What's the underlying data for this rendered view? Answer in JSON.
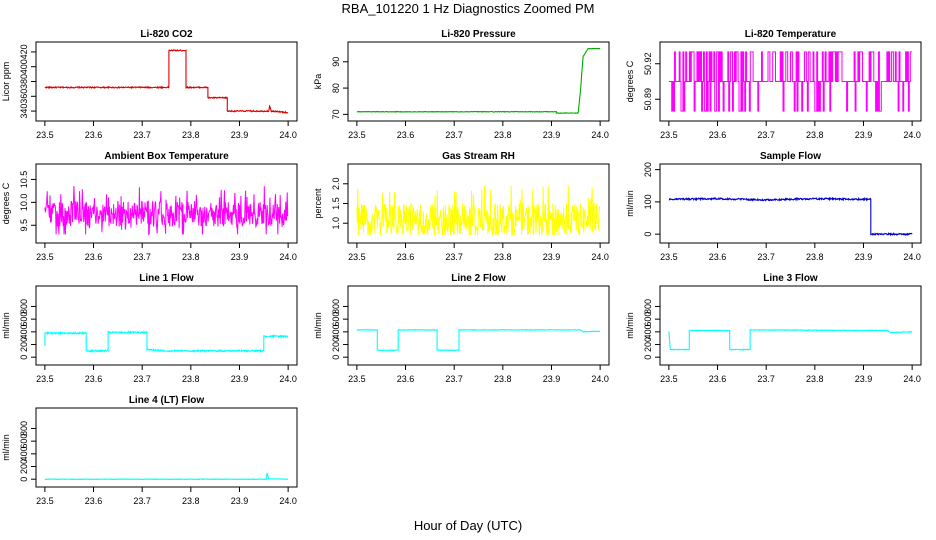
{
  "figure": {
    "title": "RBA_101220  1 Hz Diagnostics Zoomed PM",
    "xlabel": "Hour of Day (UTC)"
  },
  "chart_data": [
    {
      "type": "line",
      "title": "Li-820 CO2",
      "ylabel": "Licor ppm",
      "xlim": [
        23.49,
        24.01
      ],
      "ylim": [
        332,
        428
      ],
      "xticks": [
        "23.5",
        "23.6",
        "23.7",
        "23.8",
        "23.9",
        "24.0"
      ],
      "xtick_values": [
        23.5,
        23.6,
        23.7,
        23.8,
        23.9,
        24.0
      ],
      "yticks": [
        "340",
        "360",
        "380",
        "400",
        "420"
      ],
      "ytick_values": [
        340,
        360,
        380,
        400,
        420
      ],
      "color": "#dd0000",
      "noise": 0.8,
      "series": [
        {
          "x": [
            23.5,
            23.755,
            23.755,
            23.79,
            23.79,
            23.835,
            23.835,
            23.875,
            23.875,
            23.96,
            23.962,
            23.965,
            24.0
          ],
          "y": [
            372,
            372,
            422,
            422,
            372,
            372,
            358,
            358,
            340,
            340,
            347,
            340,
            338
          ]
        }
      ]
    },
    {
      "type": "line",
      "title": "Li-820 Pressure",
      "ylabel": "kPa",
      "xlim": [
        23.49,
        24.01
      ],
      "ylim": [
        69,
        96
      ],
      "xticks": [
        "23.5",
        "23.6",
        "23.7",
        "23.8",
        "23.9",
        "24.0"
      ],
      "xtick_values": [
        23.5,
        23.6,
        23.7,
        23.8,
        23.9,
        24.0
      ],
      "yticks": [
        "70",
        "80",
        "90"
      ],
      "ytick_values": [
        70,
        80,
        90
      ],
      "color": "#00aa00",
      "noise": 0.1,
      "series": [
        {
          "x": [
            23.5,
            23.91,
            23.91,
            23.955,
            23.96,
            23.965,
            23.975,
            24.0
          ],
          "y": [
            71,
            71,
            70.5,
            70.5,
            80,
            92,
            95,
            95
          ]
        }
      ]
    },
    {
      "type": "line",
      "title": "Li-820 Temperature",
      "ylabel": "degrees C",
      "xlim": [
        23.49,
        24.01
      ],
      "ylim": [
        50.875,
        50.935
      ],
      "xticks": [
        "23.5",
        "23.6",
        "23.7",
        "23.8",
        "23.9",
        "24.0"
      ],
      "xtick_values": [
        23.5,
        23.6,
        23.7,
        23.8,
        23.9,
        24.0
      ],
      "yticks": [
        "50.89",
        "50.92"
      ],
      "ytick_values": [
        50.89,
        50.92
      ],
      "color": "#ff00ff",
      "pattern": {
        "kind": "switch",
        "levels": [
          50.88,
          50.905,
          50.93
        ],
        "weights": [
          0.15,
          0.55,
          0.3
        ]
      },
      "series": []
    },
    {
      "type": "line",
      "title": "Ambient Box Temperature",
      "ylabel": "degrees C",
      "xlim": [
        23.49,
        24.01
      ],
      "ylim": [
        9.2,
        10.75
      ],
      "xticks": [
        "23.5",
        "23.6",
        "23.7",
        "23.8",
        "23.9",
        "24.0"
      ],
      "xtick_values": [
        23.5,
        23.6,
        23.7,
        23.8,
        23.9,
        24.0
      ],
      "yticks": [
        "9.5",
        "10.0",
        "10.5"
      ],
      "ytick_values": [
        9.5,
        10.0,
        10.5
      ],
      "color": "#ff00ff",
      "pattern": {
        "kind": "noise",
        "mean": 9.75,
        "spread": 0.28,
        "min": 9.3,
        "max": 10.65
      },
      "series": []
    },
    {
      "type": "line",
      "title": "Gas Stream RH",
      "ylabel": "percent",
      "xlim": [
        23.49,
        24.01
      ],
      "ylim": [
        0.6,
        2.4
      ],
      "xticks": [
        "23.5",
        "23.6",
        "23.7",
        "23.8",
        "23.9",
        "24.0"
      ],
      "xtick_values": [
        23.5,
        23.6,
        23.7,
        23.8,
        23.9,
        24.0
      ],
      "yticks": [
        "1.0",
        "1.5",
        "2.0"
      ],
      "ytick_values": [
        1.0,
        1.5,
        2.0
      ],
      "color": "#ffff00",
      "pattern": {
        "kind": "noise",
        "mean": 1.1,
        "spread": 0.4,
        "min": 0.7,
        "max": 2.3
      },
      "series": []
    },
    {
      "type": "line",
      "title": "Sample Flow",
      "ylabel": "ml/min",
      "xlim": [
        23.49,
        24.01
      ],
      "ylim": [
        -15,
        205
      ],
      "xticks": [
        "23.5",
        "23.6",
        "23.7",
        "23.8",
        "23.9",
        "24.0"
      ],
      "xtick_values": [
        23.5,
        23.6,
        23.7,
        23.8,
        23.9,
        24.0
      ],
      "yticks": [
        "0",
        "100",
        "200"
      ],
      "ytick_values": [
        0,
        100,
        200
      ],
      "color": "#0000cc",
      "noise": 2.5,
      "series": [
        {
          "x": [
            23.5,
            23.6,
            23.7,
            23.8,
            23.915,
            23.915,
            24.0
          ],
          "y": [
            108,
            110,
            106,
            110,
            108,
            0,
            0
          ]
        }
      ]
    },
    {
      "type": "line",
      "title": "Line 1 Flow",
      "ylabel": "ml/min",
      "xlim": [
        23.49,
        24.01
      ],
      "ylim": [
        -60,
        1060
      ],
      "xticks": [
        "23.5",
        "23.6",
        "23.7",
        "23.8",
        "23.9",
        "24.0"
      ],
      "xtick_values": [
        23.5,
        23.6,
        23.7,
        23.8,
        23.9,
        24.0
      ],
      "yticks": [
        "0",
        "200",
        "400",
        "600",
        "800"
      ],
      "ytick_values": [
        0,
        200,
        400,
        600,
        800
      ],
      "color": "#00ffff",
      "noise": 12,
      "series": [
        {
          "x": [
            23.5,
            23.5,
            23.585,
            23.585,
            23.63,
            23.63,
            23.71,
            23.71,
            23.75,
            23.95,
            23.95,
            24.0
          ],
          "y": [
            180,
            380,
            380,
            100,
            100,
            390,
            390,
            120,
            100,
            100,
            330,
            330
          ]
        }
      ]
    },
    {
      "type": "line",
      "title": "Line 2 Flow",
      "ylabel": "ml/min",
      "xlim": [
        23.49,
        24.01
      ],
      "ylim": [
        -60,
        1060
      ],
      "xticks": [
        "23.5",
        "23.6",
        "23.7",
        "23.8",
        "23.9",
        "24.0"
      ],
      "xtick_values": [
        23.5,
        23.6,
        23.7,
        23.8,
        23.9,
        24.0
      ],
      "yticks": [
        "0",
        "200",
        "400",
        "600",
        "800"
      ],
      "ytick_values": [
        0,
        200,
        400,
        600,
        800
      ],
      "color": "#00ffff",
      "noise": 4,
      "series": [
        {
          "x": [
            23.5,
            23.542,
            23.542,
            23.585,
            23.585,
            23.665,
            23.665,
            23.71,
            23.71,
            23.96,
            23.965,
            24.0
          ],
          "y": [
            430,
            430,
            110,
            110,
            430,
            430,
            110,
            110,
            430,
            430,
            400,
            410
          ]
        }
      ]
    },
    {
      "type": "line",
      "title": "Line 3 Flow",
      "ylabel": "ml/min",
      "xlim": [
        23.49,
        24.01
      ],
      "ylim": [
        -60,
        1060
      ],
      "xticks": [
        "23.5",
        "23.6",
        "23.7",
        "23.8",
        "23.9",
        "24.0"
      ],
      "xtick_values": [
        23.5,
        23.6,
        23.7,
        23.8,
        23.9,
        24.0
      ],
      "yticks": [
        "0",
        "200",
        "400",
        "600",
        "800"
      ],
      "ytick_values": [
        0,
        200,
        400,
        600,
        800
      ],
      "color": "#00ffff",
      "noise": 5,
      "series": [
        {
          "x": [
            23.5,
            23.5,
            23.503,
            23.503,
            23.542,
            23.542,
            23.625,
            23.625,
            23.667,
            23.667,
            23.95,
            23.955,
            24.0
          ],
          "y": [
            410,
            410,
            120,
            120,
            120,
            420,
            420,
            120,
            120,
            430,
            420,
            390,
            400
          ]
        }
      ]
    },
    {
      "type": "line",
      "title": "Line 4 (LT) Flow",
      "ylabel": "ml/min",
      "xlim": [
        23.49,
        24.01
      ],
      "ylim": [
        -60,
        1060
      ],
      "xticks": [
        "23.5",
        "23.6",
        "23.7",
        "23.8",
        "23.9",
        "24.0"
      ],
      "xtick_values": [
        23.5,
        23.6,
        23.7,
        23.8,
        23.9,
        24.0
      ],
      "yticks": [
        "0",
        "200",
        "400",
        "600",
        "800"
      ],
      "ytick_values": [
        0,
        200,
        400,
        600,
        800
      ],
      "color": "#00ffff",
      "noise": 4,
      "series": [
        {
          "x": [
            23.5,
            23.955,
            23.957,
            23.96,
            24.0
          ],
          "y": [
            0,
            0,
            100,
            5,
            0
          ]
        }
      ]
    }
  ]
}
